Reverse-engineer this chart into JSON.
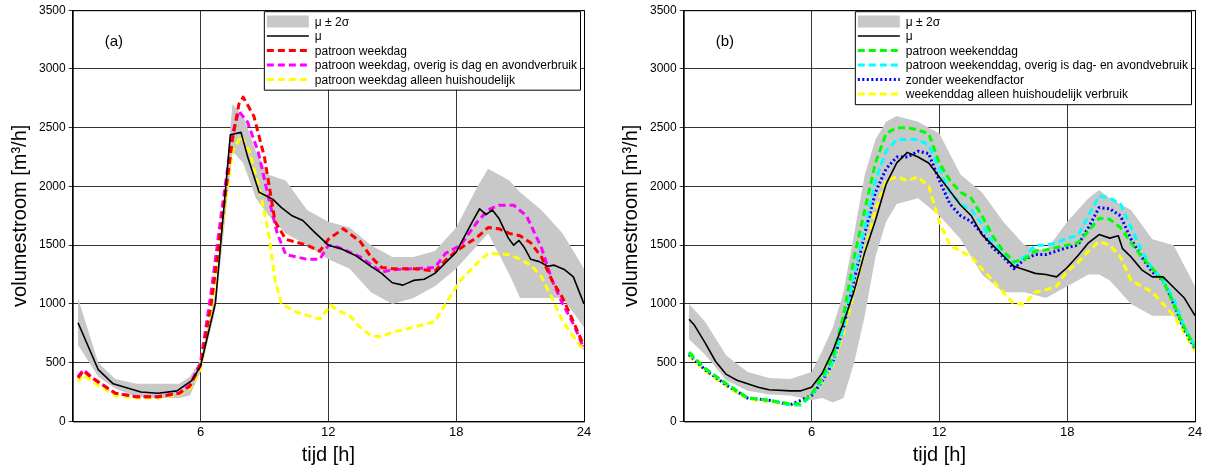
{
  "chart_data": [
    {
      "type": "line",
      "annotations": [
        "(a)"
      ],
      "xlabel": "tijd [h]",
      "ylabel": "volumestroom [m³/h]",
      "xlim": [
        0,
        24
      ],
      "xticks": [
        6,
        12,
        18,
        24
      ],
      "ylim": [
        0,
        3500
      ],
      "yticks": [
        0,
        500,
        1000,
        1500,
        2000,
        2500,
        3000,
        3500
      ],
      "grid": true,
      "legend": "top right",
      "marker": "none",
      "series": [
        {
          "name": "μ ± 2σ",
          "type": "area",
          "color": "#c8c8c8",
          "x": [
            0.25,
            1.2,
            2,
            3,
            4,
            5,
            5.5,
            6,
            6.7,
            7.5,
            8,
            8.6,
            9.2,
            10,
            11,
            12,
            13,
            14,
            15,
            16,
            17,
            18,
            19,
            19.5,
            20.5,
            21,
            22,
            23,
            24
          ],
          "values": [
            null,
            null,
            null,
            null,
            null,
            null,
            null,
            null,
            null,
            null,
            null,
            null,
            null,
            null,
            null,
            null,
            null,
            null,
            null,
            null,
            null,
            null,
            null,
            null,
            null,
            null,
            null,
            null,
            null
          ],
          "lower": [
            650,
            380,
            280,
            210,
            200,
            200,
            220,
            420,
            950,
            2300,
            2200,
            1900,
            1750,
            1600,
            1500,
            1380,
            1300,
            1100,
            1000,
            1050,
            1150,
            1300,
            1500,
            1600,
            1250,
            1050,
            1050,
            1050,
            800
          ],
          "upper": [
            1050,
            500,
            360,
            320,
            320,
            320,
            380,
            520,
            1100,
            2700,
            2600,
            2300,
            2100,
            2050,
            1800,
            1700,
            1650,
            1500,
            1400,
            1400,
            1450,
            1650,
            2000,
            2150,
            2050,
            1950,
            1800,
            1600,
            1300
          ]
        },
        {
          "name": "μ",
          "type": "line",
          "color": "#000000",
          "line_style": "solid",
          "x": [
            0.25,
            1.2,
            1.9,
            3.2,
            4,
            4.9,
            5.6,
            6,
            6.7,
            7.4,
            7.9,
            8.2,
            8.75,
            9.4,
            9.8,
            10.3,
            10.8,
            11.3,
            12,
            12.6,
            13.3,
            14,
            14.5,
            15,
            15.5,
            16,
            16.5,
            17,
            17.5,
            18,
            18.7,
            19.1,
            19.4,
            19.7,
            20,
            20.45,
            20.7,
            20.95,
            21.2,
            21.5,
            21.9,
            22.3,
            22.6,
            23.1,
            23.5,
            24
          ],
          "values": [
            840,
            440,
            320,
            250,
            240,
            260,
            350,
            470,
            1010,
            2440,
            2460,
            2260,
            1950,
            1890,
            1820,
            1750,
            1710,
            1620,
            1500,
            1470,
            1410,
            1320,
            1260,
            1180,
            1160,
            1200,
            1210,
            1260,
            1350,
            1440,
            1680,
            1810,
            1760,
            1800,
            1730,
            1560,
            1500,
            1540,
            1480,
            1380,
            1360,
            1320,
            1330,
            1290,
            1230,
            1000
          ]
        },
        {
          "name": "patroon weekdag",
          "type": "line",
          "color": "#ff0000",
          "line_style": "dashed",
          "x": [
            0.25,
            0.5,
            1,
            2,
            3,
            4,
            5,
            5.5,
            6,
            6.5,
            7,
            7.5,
            7.8,
            8,
            8.5,
            9,
            9.5,
            10,
            11,
            11.6,
            12,
            12.7,
            13.5,
            14,
            14.5,
            15,
            16,
            17,
            17.5,
            18,
            19,
            19.5,
            20,
            20.5,
            21,
            21.5,
            22,
            22.5,
            23,
            23.5,
            24
          ],
          "values": [
            370,
            430,
            360,
            240,
            210,
            210,
            240,
            300,
            480,
            1000,
            1700,
            2400,
            2700,
            2760,
            2600,
            2250,
            1700,
            1550,
            1500,
            1450,
            1550,
            1640,
            1530,
            1400,
            1310,
            1300,
            1300,
            1280,
            1370,
            1450,
            1570,
            1650,
            1640,
            1600,
            1580,
            1520,
            1400,
            1200,
            1050,
            850,
            640
          ]
        },
        {
          "name": "patroon weekdag, overig is dag en avondverbruik",
          "type": "line",
          "color": "#ff00ff",
          "line_style": "dashed",
          "x": [
            0.25,
            0.5,
            1,
            2,
            3,
            4,
            5,
            5.5,
            6,
            6.5,
            7,
            7.5,
            7.8,
            8.2,
            8.7,
            9.2,
            9.6,
            10,
            11,
            11.6,
            12,
            12.5,
            13.5,
            14.5,
            15,
            16,
            17,
            17.5,
            18.2,
            19,
            19.5,
            20,
            20.7,
            21.3,
            22,
            22.5,
            23,
            23.5,
            24
          ],
          "values": [
            380,
            440,
            360,
            240,
            210,
            210,
            240,
            310,
            500,
            1100,
            1800,
            2450,
            2640,
            2550,
            2300,
            1900,
            1600,
            1420,
            1380,
            1380,
            1500,
            1480,
            1400,
            1270,
            1290,
            1300,
            1310,
            1430,
            1500,
            1700,
            1800,
            1840,
            1840,
            1750,
            1480,
            1200,
            1000,
            830,
            620
          ]
        },
        {
          "name": "patroon weekdag alleen huishoudelijk",
          "type": "line",
          "color": "#ffff00",
          "line_style": "dashed",
          "x": [
            0.25,
            0.5,
            1,
            2,
            3,
            4,
            5,
            5.5,
            6,
            6.5,
            7,
            7.5,
            7.9,
            8.3,
            8.8,
            9.2,
            9.5,
            9.8,
            10.5,
            11.6,
            12.1,
            12.5,
            13,
            13.5,
            14,
            14.5,
            15,
            16,
            17,
            17.5,
            18.2,
            19,
            19.5,
            20.5,
            21,
            21.5,
            22,
            22.5,
            23,
            24
          ],
          "values": [
            340,
            400,
            330,
            220,
            200,
            200,
            230,
            280,
            450,
            950,
            1650,
            2300,
            2430,
            2300,
            1950,
            1600,
            1200,
            1000,
            930,
            870,
            990,
            940,
            900,
            800,
            730,
            720,
            760,
            800,
            850,
            1000,
            1200,
            1350,
            1430,
            1420,
            1380,
            1330,
            1230,
            1050,
            850,
            600
          ]
        }
      ]
    },
    {
      "type": "line",
      "annotations": [
        "(b)"
      ],
      "xlabel": "tijd [h]",
      "ylabel": "volumestroom [m³/h]",
      "xlim": [
        0,
        24
      ],
      "xticks": [
        6,
        12,
        18,
        24
      ],
      "ylim": [
        0,
        3500
      ],
      "yticks": [
        0,
        500,
        1000,
        1500,
        2000,
        2500,
        3000,
        3500
      ],
      "grid": true,
      "legend": "top right",
      "marker": "none",
      "series": [
        {
          "name": "μ ± 2σ",
          "type": "area",
          "color": "#c8c8c8",
          "x": [
            0.25,
            1,
            2,
            3,
            4,
            5,
            6,
            6.5,
            7,
            7.5,
            8,
            8.5,
            9,
            9.5,
            10,
            11,
            12,
            13,
            14,
            15,
            16,
            17,
            18,
            19,
            19.5,
            20,
            21,
            22,
            23,
            24
          ],
          "values": [
            null,
            null,
            null,
            null,
            null,
            null,
            null,
            null,
            null,
            null,
            null,
            null,
            null,
            null,
            null,
            null,
            null,
            null,
            null,
            null,
            null,
            null,
            null,
            null,
            null,
            null,
            null,
            null,
            null,
            null
          ],
          "lower": [
            700,
            570,
            350,
            260,
            230,
            220,
            180,
            200,
            160,
            200,
            500,
            900,
            1400,
            1700,
            1850,
            1900,
            1750,
            1550,
            1250,
            1100,
            1100,
            1050,
            1150,
            1250,
            1250,
            1200,
            1000,
            900,
            900,
            650
          ],
          "upper": [
            1000,
            850,
            560,
            420,
            370,
            360,
            420,
            600,
            800,
            1100,
            1600,
            2100,
            2400,
            2550,
            2600,
            2550,
            2450,
            2100,
            1950,
            1700,
            1500,
            1450,
            1700,
            1900,
            1970,
            1900,
            1800,
            1550,
            1500,
            1150
          ]
        },
        {
          "name": "μ",
          "type": "line",
          "color": "#000000",
          "line_style": "solid",
          "x": [
            0.25,
            0.5,
            1,
            1.5,
            2,
            2.5,
            3,
            3.5,
            4,
            5,
            5.5,
            6,
            6.5,
            7,
            7.5,
            8,
            8.5,
            9,
            9.5,
            10,
            10.5,
            11,
            11.5,
            12,
            12.5,
            13,
            13.5,
            14,
            14.5,
            15,
            15.5,
            16,
            16.5,
            17,
            17.5,
            18,
            18.5,
            19,
            19.5,
            20,
            20.4,
            20.6,
            21,
            21.5,
            22,
            22.5,
            23,
            23.5,
            24
          ],
          "values": [
            870,
            820,
            670,
            510,
            400,
            350,
            320,
            290,
            270,
            260,
            260,
            290,
            410,
            600,
            840,
            1110,
            1440,
            1710,
            2020,
            2200,
            2290,
            2250,
            2200,
            2080,
            1960,
            1840,
            1750,
            1590,
            1500,
            1410,
            1320,
            1290,
            1260,
            1250,
            1230,
            1310,
            1410,
            1520,
            1590,
            1560,
            1580,
            1470,
            1400,
            1290,
            1230,
            1230,
            1140,
            1050,
            900
          ]
        },
        {
          "name": "patroon weekenddag",
          "type": "line",
          "color": "#00ff00",
          "line_style": "dashed",
          "x": [
            0.25,
            1,
            2,
            3,
            4,
            5,
            5.5,
            6,
            6.5,
            7,
            7.5,
            8,
            8.5,
            9,
            9.5,
            10,
            10.5,
            11,
            11.5,
            12,
            12.5,
            13,
            13.5,
            14,
            14.5,
            15,
            15.5,
            16,
            16.5,
            17,
            17.5,
            18,
            18.5,
            19,
            19.5,
            20,
            20.5,
            21,
            21.5,
            22,
            22.5,
            23,
            23.5,
            24
          ],
          "values": [
            590,
            450,
            320,
            200,
            180,
            150,
            150,
            230,
            380,
            550,
            900,
            1400,
            1800,
            2200,
            2450,
            2500,
            2500,
            2480,
            2450,
            2200,
            2050,
            1950,
            1900,
            1750,
            1580,
            1450,
            1360,
            1380,
            1450,
            1460,
            1480,
            1500,
            1520,
            1620,
            1730,
            1720,
            1650,
            1520,
            1400,
            1300,
            1200,
            1000,
            800,
            630
          ]
        },
        {
          "name": "patroon weekenddag, overig is dag- en avondvebruik",
          "type": "line",
          "color": "#00ffff",
          "line_style": "dashed",
          "x": [
            0.25,
            1,
            2,
            3,
            4,
            5,
            5.5,
            6,
            6.5,
            7,
            7.5,
            8,
            8.5,
            9,
            9.5,
            10,
            10.5,
            11,
            11.5,
            12,
            12.5,
            13,
            13.5,
            14,
            14.5,
            15,
            15.5,
            16,
            16.5,
            17,
            17.5,
            18,
            18.5,
            19,
            19.5,
            20,
            20.5,
            21,
            21.5,
            22,
            22.5,
            23,
            23.5,
            24
          ],
          "values": [
            580,
            450,
            320,
            200,
            180,
            140,
            140,
            220,
            350,
            500,
            800,
            1250,
            1650,
            2050,
            2300,
            2400,
            2400,
            2400,
            2350,
            2150,
            1950,
            1850,
            1800,
            1680,
            1520,
            1420,
            1350,
            1400,
            1500,
            1500,
            1520,
            1560,
            1580,
            1750,
            1920,
            1900,
            1850,
            1650,
            1450,
            1300,
            1200,
            1050,
            800,
            640
          ]
        },
        {
          "name": "zonder weekendfactor",
          "type": "line",
          "color": "#0000ff",
          "line_style": "dotted",
          "x": [
            0.25,
            1,
            2,
            3,
            4,
            5,
            6,
            6.5,
            7,
            7.5,
            8,
            8.5,
            9,
            9.5,
            10,
            10.5,
            11,
            11.5,
            12,
            12.5,
            13,
            13.5,
            14,
            14.5,
            15,
            15.5,
            16,
            16.5,
            17,
            17.5,
            18,
            18.5,
            19,
            19.5,
            20,
            20.5,
            21,
            21.5,
            22,
            22.5,
            23,
            23.5,
            24
          ],
          "values": [
            570,
            440,
            310,
            200,
            180,
            140,
            220,
            340,
            500,
            800,
            1200,
            1600,
            1950,
            2150,
            2250,
            2250,
            2300,
            2280,
            2050,
            1850,
            1750,
            1700,
            1600,
            1480,
            1400,
            1300,
            1380,
            1420,
            1420,
            1450,
            1480,
            1500,
            1650,
            1820,
            1810,
            1750,
            1550,
            1400,
            1270,
            1200,
            1000,
            780,
            620
          ]
        },
        {
          "name": "weekenddag alleen huishoudelijk verbruik",
          "type": "line",
          "color": "#ffff00",
          "line_style": "dashed",
          "x": [
            0.25,
            1,
            2,
            3,
            4,
            5,
            5.5,
            6,
            6.5,
            7,
            7.5,
            8,
            8.5,
            9,
            9.5,
            10,
            10.5,
            11,
            11.5,
            12,
            12.5,
            13,
            13.5,
            14,
            14.5,
            15,
            15.5,
            16,
            16.5,
            17,
            17.5,
            18,
            18.5,
            19,
            19.5,
            20,
            20.5,
            21,
            21.5,
            22,
            22.5,
            23,
            23.5,
            24
          ],
          "values": [
            560,
            430,
            300,
            190,
            170,
            140,
            140,
            220,
            330,
            480,
            750,
            1100,
            1450,
            1800,
            2050,
            2080,
            2050,
            2080,
            2000,
            1700,
            1500,
            1450,
            1400,
            1300,
            1200,
            1100,
            1000,
            1000,
            1100,
            1120,
            1150,
            1280,
            1350,
            1450,
            1530,
            1500,
            1400,
            1200,
            1150,
            1100,
            1000,
            900,
            750,
            600
          ]
        }
      ]
    }
  ]
}
